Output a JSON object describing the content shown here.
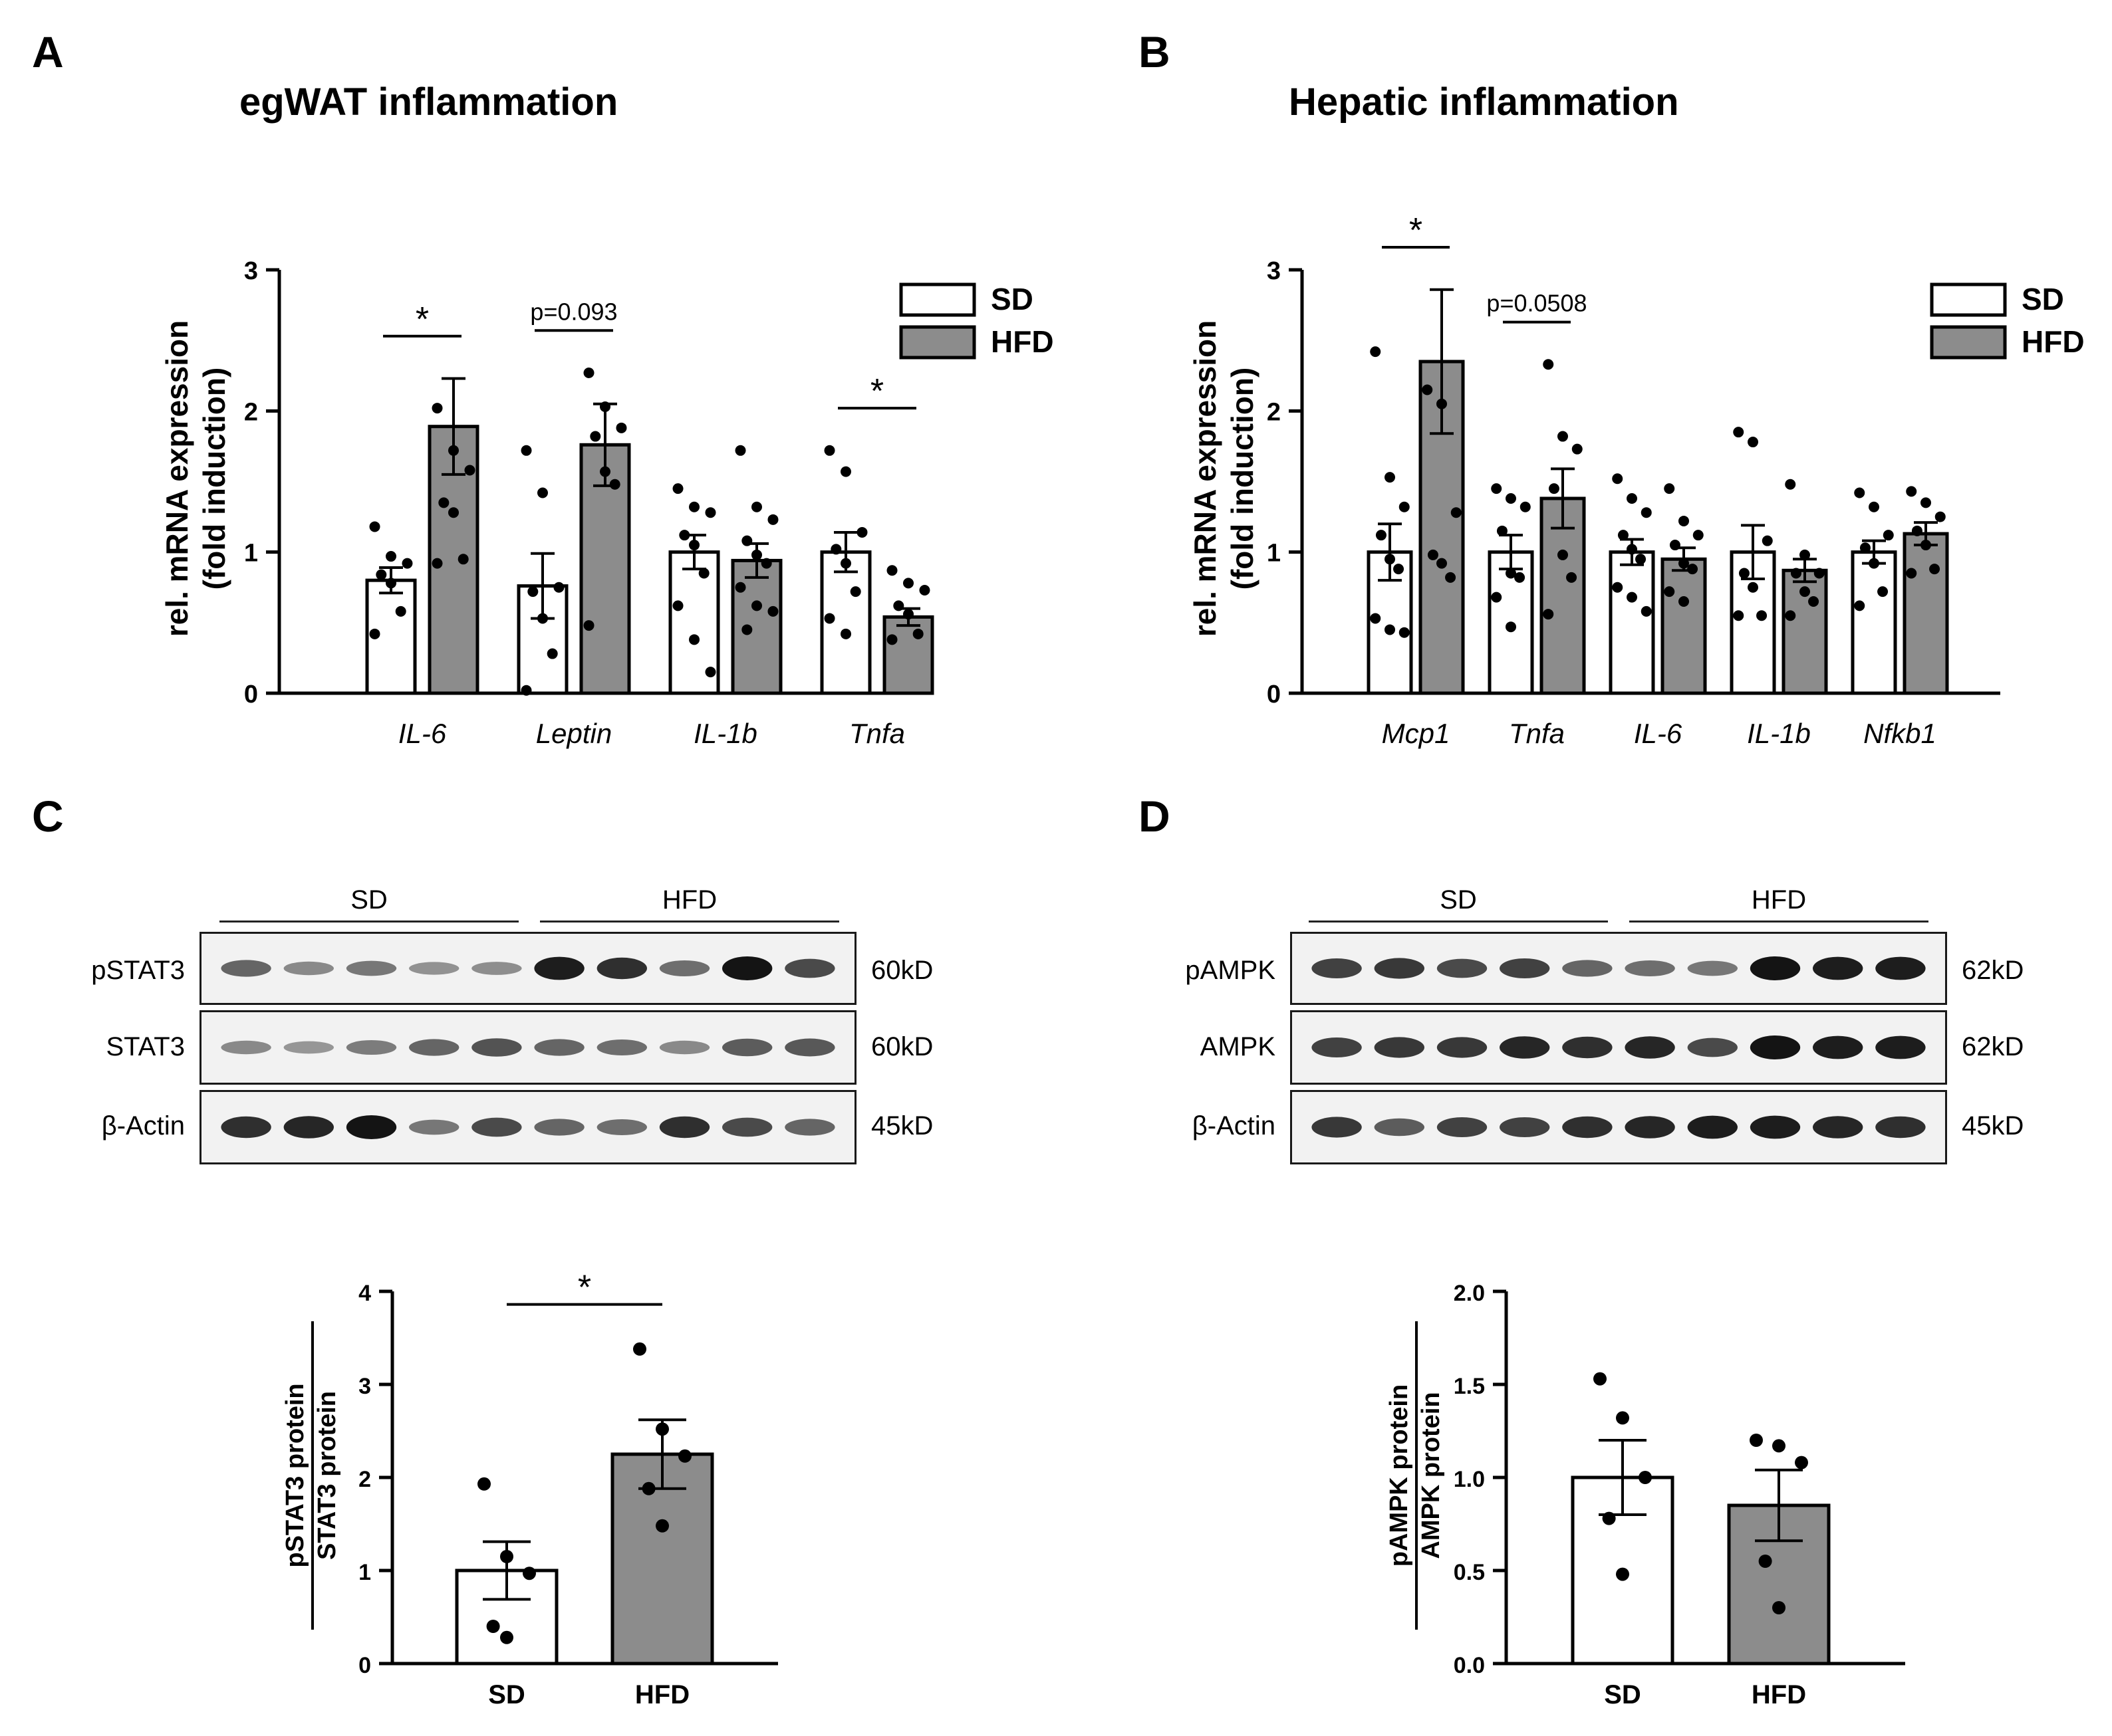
{
  "panels": {
    "A": {
      "letter": "A",
      "title": "egWAT inflammation"
    },
    "B": {
      "letter": "B",
      "title": "Hepatic inflammation"
    },
    "C": {
      "letter": "C"
    },
    "D": {
      "letter": "D"
    }
  },
  "legend": {
    "sd": "SD",
    "hfd": "HFD"
  },
  "colors": {
    "sd": "#ffffff",
    "hfd": "#8c8c8c",
    "axis": "#000000"
  },
  "chart_data": [
    {
      "id": "A",
      "type": "bar",
      "title": "egWAT inflammation",
      "ylabel": [
        "rel. mRNA expression",
        "(fold induction)"
      ],
      "ylim": [
        0,
        3
      ],
      "yticks": [
        0,
        1,
        2,
        3
      ],
      "categories": [
        "IL-6",
        "Leptin",
        "IL-1b",
        "Tnfa"
      ],
      "legend": "top-right",
      "series": [
        {
          "name": "SD",
          "values": [
            0.8,
            0.76,
            1.0,
            1.0
          ],
          "sem": [
            0.09,
            0.23,
            0.12,
            0.14
          ],
          "points": [
            [
              1.18,
              0.97,
              0.92,
              0.84,
              0.78,
              0.58,
              0.42
            ],
            [
              1.72,
              1.42,
              0.75,
              0.72,
              0.53,
              0.28,
              0.02
            ],
            [
              1.45,
              1.32,
              1.28,
              1.12,
              1.05,
              0.85,
              0.62,
              0.38,
              0.15
            ],
            [
              1.72,
              1.57,
              1.14,
              1.02,
              0.92,
              0.72,
              0.53,
              0.42
            ]
          ]
        },
        {
          "name": "HFD",
          "values": [
            1.89,
            1.76,
            0.94,
            0.54
          ],
          "sem": [
            0.34,
            0.29,
            0.12,
            0.06
          ],
          "points": [
            [
              2.02,
              1.72,
              1.58,
              1.35,
              1.28,
              0.95,
              0.92
            ],
            [
              2.27,
              2.03,
              1.88,
              1.82,
              1.57,
              1.48,
              0.48
            ],
            [
              1.72,
              1.32,
              1.23,
              1.08,
              0.98,
              0.92,
              0.75,
              0.62,
              0.58,
              0.45
            ],
            [
              0.87,
              0.78,
              0.73,
              0.62,
              0.56,
              0.42,
              0.38
            ]
          ]
        }
      ],
      "annotations": [
        {
          "category": "IL-6",
          "text": "*"
        },
        {
          "category": "Leptin",
          "text": "p=0.093"
        },
        {
          "category": "Tnfa",
          "text": "*"
        }
      ]
    },
    {
      "id": "B",
      "type": "bar",
      "title": "Hepatic inflammation",
      "ylabel": [
        "rel. mRNA expression",
        "(fold induction)"
      ],
      "ylim": [
        0,
        3
      ],
      "yticks": [
        0,
        1,
        2,
        3
      ],
      "categories": [
        "Mcp1",
        "Tnfa",
        "IL-6",
        "IL-1b",
        "Nfkb1"
      ],
      "legend": "top-right",
      "series": [
        {
          "name": "SD",
          "values": [
            1.0,
            1.0,
            1.0,
            1.0,
            1.0
          ],
          "sem": [
            0.2,
            0.12,
            0.09,
            0.19,
            0.08
          ],
          "points": [
            [
              2.42,
              1.53,
              1.32,
              1.12,
              0.95,
              0.88,
              0.53,
              0.45,
              0.43
            ],
            [
              1.45,
              1.38,
              1.32,
              1.15,
              0.85,
              0.82,
              0.68,
              0.47
            ],
            [
              1.52,
              1.38,
              1.28,
              1.12,
              1.02,
              0.95,
              0.75,
              0.68,
              0.58
            ],
            [
              1.85,
              1.78,
              1.08,
              0.85,
              0.75,
              0.55,
              0.55
            ],
            [
              1.42,
              1.32,
              1.12,
              1.03,
              0.92,
              0.72,
              0.62
            ]
          ]
        },
        {
          "name": "HFD",
          "values": [
            2.35,
            1.38,
            0.95,
            0.87,
            1.13
          ],
          "sem": [
            0.51,
            0.21,
            0.08,
            0.08,
            0.08
          ],
          "points": [
            [
              2.15,
              2.05,
              1.28,
              0.98,
              0.92,
              0.82
            ],
            [
              2.33,
              1.82,
              1.73,
              1.45,
              0.98,
              0.82,
              0.56
            ],
            [
              1.45,
              1.22,
              1.12,
              1.05,
              0.92,
              0.88,
              0.72,
              0.65
            ],
            [
              1.48,
              0.98,
              0.85,
              0.85,
              0.72,
              0.65,
              0.55
            ],
            [
              1.43,
              1.35,
              1.25,
              1.15,
              1.05,
              0.88,
              0.85
            ]
          ]
        }
      ],
      "annotations": [
        {
          "category": "Mcp1",
          "text": "*"
        },
        {
          "category": "Tnfa",
          "text": "p=0.0508"
        }
      ]
    },
    {
      "id": "C",
      "type": "bar",
      "ylabel": [
        "pSTAT3 protein",
        "STAT3 protein"
      ],
      "ylim": [
        0,
        4
      ],
      "yticks": [
        0,
        1,
        2,
        3,
        4
      ],
      "categories": [
        "SD",
        "HFD"
      ],
      "series": [
        {
          "name": "SD/HFD",
          "values": [
            1.0,
            2.25
          ],
          "sem": [
            0.31,
            0.37
          ],
          "points": [
            [
              1.93,
              1.15,
              0.97,
              0.4,
              0.28
            ],
            [
              3.38,
              2.52,
              2.23,
              1.88,
              1.48
            ]
          ]
        }
      ],
      "annotations": [
        {
          "category": "SD-HFD",
          "text": "*"
        }
      ]
    },
    {
      "id": "D",
      "type": "bar",
      "ylabel": [
        "pAMPK protein",
        "AMPK protein"
      ],
      "ylim": [
        0,
        2
      ],
      "yticks": [
        0.0,
        0.5,
        1.0,
        1.5,
        2.0
      ],
      "ytick_labels": [
        "0.0",
        "0.5",
        "1.0",
        "1.5",
        "2.0"
      ],
      "categories": [
        "SD",
        "HFD"
      ],
      "series": [
        {
          "name": "SD/HFD",
          "values": [
            1.0,
            0.85
          ],
          "sem": [
            0.2,
            0.19
          ],
          "points": [
            [
              1.53,
              1.32,
              1.0,
              0.78,
              0.48
            ],
            [
              1.2,
              1.17,
              1.08,
              0.55,
              0.3
            ]
          ]
        }
      ]
    }
  ],
  "blots": {
    "C": {
      "groups": [
        "SD",
        "HFD"
      ],
      "rows": [
        {
          "label": "pSTAT3",
          "kd": "60kD",
          "intensity": [
            0.55,
            0.35,
            0.45,
            0.3,
            0.32,
            0.95,
            0.85,
            0.5,
            1.0,
            0.7
          ]
        },
        {
          "label": "STAT3",
          "kd": "60kD",
          "intensity": [
            0.35,
            0.28,
            0.42,
            0.55,
            0.65,
            0.55,
            0.5,
            0.35,
            0.6,
            0.62
          ]
        },
        {
          "label": "β-Actin",
          "kd": "45kD",
          "intensity": [
            0.85,
            0.9,
            1.0,
            0.45,
            0.7,
            0.55,
            0.5,
            0.85,
            0.7,
            0.55
          ]
        }
      ]
    },
    "D": {
      "groups": [
        "SD",
        "HFD"
      ],
      "rows": [
        {
          "label": "pAMPK",
          "kd": "62kD",
          "intensity": [
            0.75,
            0.8,
            0.7,
            0.75,
            0.55,
            0.5,
            0.45,
            1.0,
            0.95,
            0.95
          ]
        },
        {
          "label": "AMPK",
          "kd": "62kD",
          "intensity": [
            0.75,
            0.8,
            0.8,
            0.9,
            0.85,
            0.9,
            0.7,
            1.0,
            0.95,
            0.95
          ]
        },
        {
          "label": "β-Actin",
          "kd": "45kD",
          "intensity": [
            0.8,
            0.6,
            0.75,
            0.75,
            0.85,
            0.9,
            0.95,
            0.95,
            0.9,
            0.85
          ]
        }
      ]
    }
  }
}
